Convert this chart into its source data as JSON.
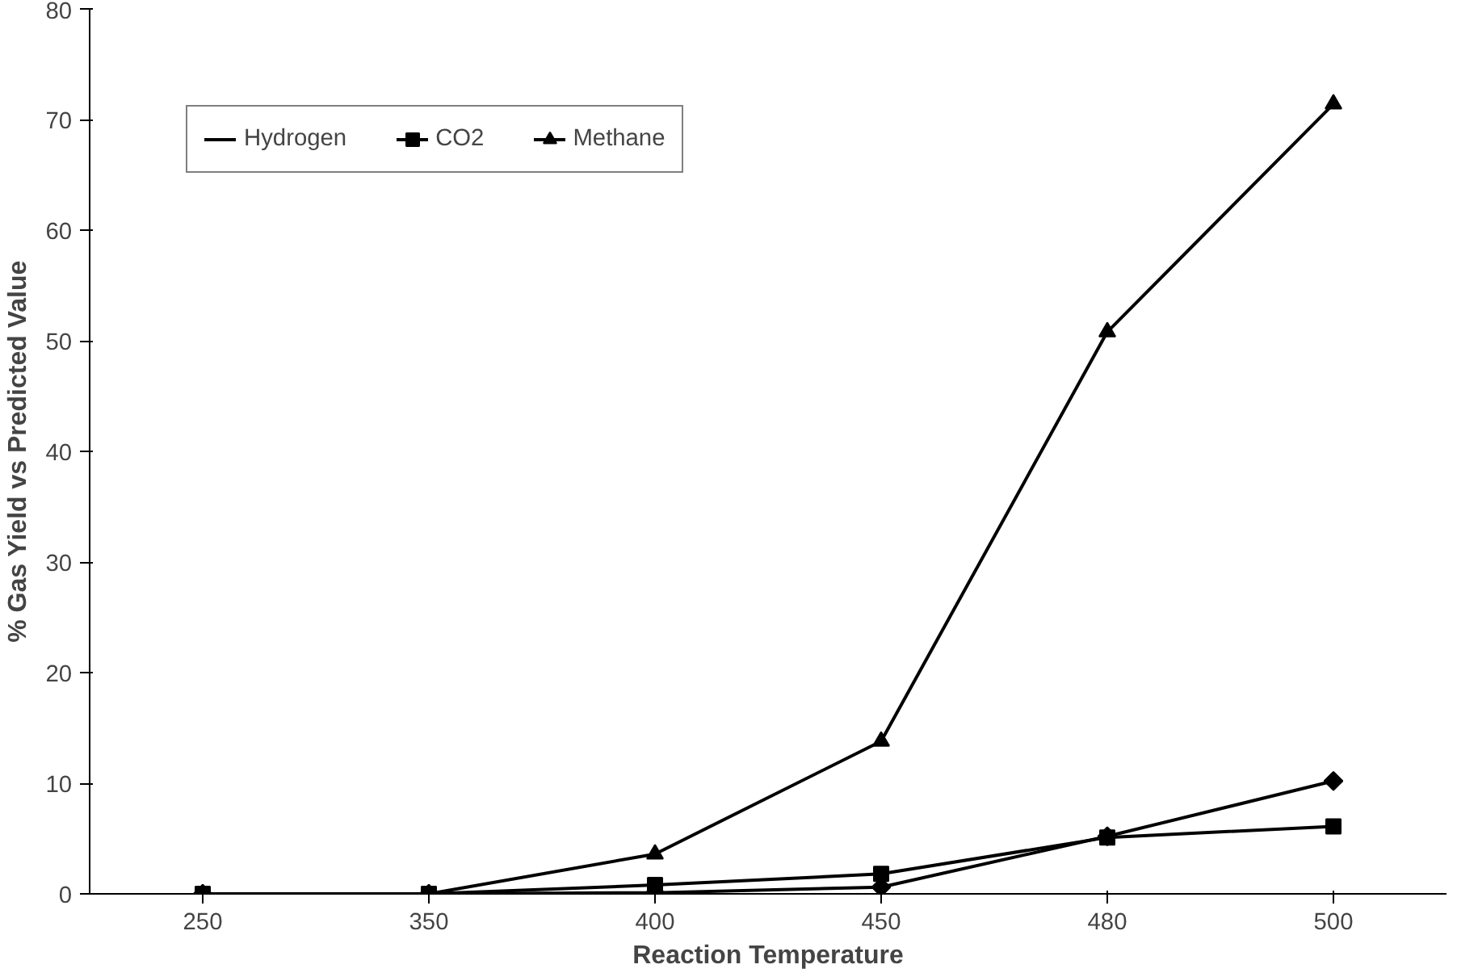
{
  "chart_data": {
    "type": "line",
    "xlabel": "Reaction Temperature",
    "ylabel": "% Gas Yield vs Predicted Value",
    "categories": [
      "250",
      "350",
      "400",
      "450",
      "480",
      "500"
    ],
    "series": [
      {
        "name": "Hydrogen",
        "color": "#000000",
        "marker": "diamond",
        "values": [
          0,
          0,
          0.1,
          0.6,
          5.2,
          10.2
        ]
      },
      {
        "name": "CO2",
        "color": "#000000",
        "marker": "square",
        "values": [
          0,
          0,
          0.8,
          1.8,
          5.1,
          6.1
        ]
      },
      {
        "name": "Methane",
        "color": "#000000",
        "marker": "triangle",
        "values": [
          0,
          0,
          3.6,
          13.8,
          50.8,
          71.4
        ]
      }
    ],
    "ylim": [
      0,
      80
    ],
    "yticks": [
      0,
      10,
      20,
      30,
      40,
      50,
      60,
      70,
      80
    ],
    "grid": false,
    "legend": "top left",
    "line_style": "solid"
  }
}
